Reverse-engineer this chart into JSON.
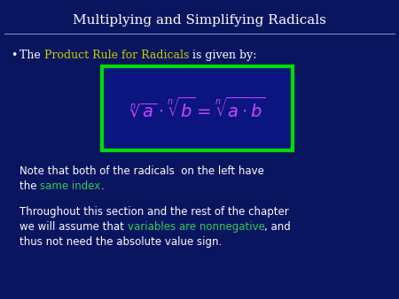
{
  "bg_color": "#0a1560",
  "title": "Multiplying and Simplifying Radicals",
  "title_color": "#ffffff",
  "title_fontsize": 11,
  "line_color": "#8888bb",
  "bullet_text_parts": [
    {
      "text": "The ",
      "color": "#ffffff"
    },
    {
      "text": "Product Rule for Radicals",
      "color": "#cccc00"
    },
    {
      "text": " is given by:",
      "color": "#ffffff"
    }
  ],
  "formula_box_color": "#00dd00",
  "formula_bg": "#0a1580",
  "note_line1_white": "Note that both of the radicals  on the left have",
  "note_line2_white": "the ",
  "note_line2_green": "same index",
  "note_line2_end": ".",
  "para_line1": "Throughout this section and the rest of the chapter",
  "para_line2_w1": "we will assume that ",
  "para_line2_green": "variables are nonnegative",
  "para_line2_w2": ", and",
  "para_line3": "thus not need the absolute value sign.",
  "text_color": "#ffffff",
  "green_color": "#33cc55",
  "formula_color": "#cc44ff",
  "bullet_fontsize": 9,
  "note_fontsize": 8.5
}
